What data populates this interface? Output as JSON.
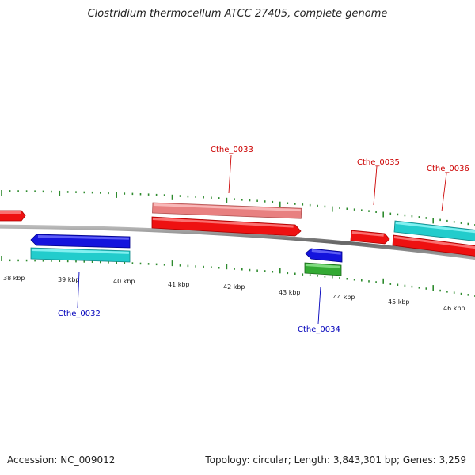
{
  "title": "Clostridium thermocellum ATCC 27405, complete genome",
  "footer": {
    "accession": "Accession: NC_009012",
    "stats": "Topology: circular; Length: 3,843,301 bp; Genes: 3,259"
  },
  "colors": {
    "backbone": "#808080",
    "tick_major": "#2e8b2e",
    "tick_minor": "#2e8b2e",
    "label_forward": "#cc0000",
    "label_reverse": "#0000bb",
    "gene_red": "#ee1111",
    "gene_pink": "#e88080",
    "gene_cyan": "#22cccc",
    "gene_blue": "#1414dd",
    "gene_green": "#33aa33"
  },
  "scale_labels": [
    "38 kbp",
    "39 kbp",
    "40 kbp",
    "41 kbp",
    "42 kbp",
    "43 kbp",
    "44 kbp",
    "45 kbp",
    "46 kbp"
  ],
  "gene_labels": {
    "cthe_0032": "Cthe_0032",
    "cthe_0033": "Cthe_0033",
    "cthe_0034": "Cthe_0034",
    "cthe_0035": "Cthe_0035",
    "cthe_0036": "Cthe_0036"
  }
}
